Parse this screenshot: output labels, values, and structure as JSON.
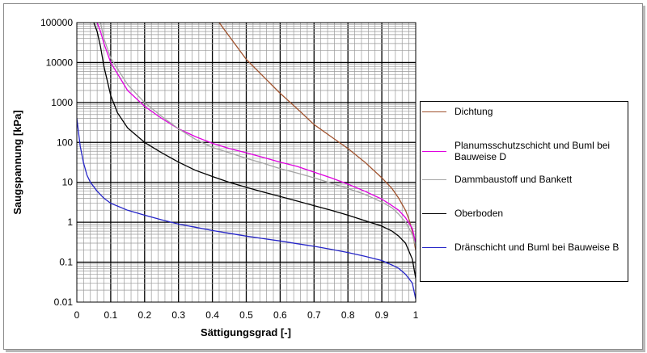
{
  "chart_data": {
    "type": "line",
    "title": "",
    "xlabel": "Sättigungsgrad [-]",
    "ylabel": "Saugspannung [kPa]",
    "xlim": [
      0,
      1
    ],
    "ylim": [
      0.01,
      100000
    ],
    "yscale": "log",
    "grid": true,
    "legend_position": "right",
    "x_ticks": [
      "0",
      "0.1",
      "0.2",
      "0.3",
      "0.4",
      "0.5",
      "0.6",
      "0.7",
      "0.8",
      "0.9",
      "1"
    ],
    "y_ticks": [
      "0.01",
      "0.1",
      "1",
      "10",
      "100",
      "1000",
      "10000",
      "100000"
    ],
    "series": [
      {
        "name": "Dichtung",
        "color": "#a0522d",
        "points": [
          [
            0.42,
            100000
          ],
          [
            0.45,
            45000
          ],
          [
            0.5,
            12000
          ],
          [
            0.55,
            4500
          ],
          [
            0.6,
            1700
          ],
          [
            0.65,
            700
          ],
          [
            0.7,
            280
          ],
          [
            0.75,
            140
          ],
          [
            0.8,
            70
          ],
          [
            0.85,
            32
          ],
          [
            0.9,
            13
          ],
          [
            0.93,
            7
          ],
          [
            0.95,
            4
          ],
          [
            0.97,
            2
          ],
          [
            0.98,
            1.2
          ],
          [
            0.99,
            0.6
          ],
          [
            1.0,
            0.2
          ]
        ]
      },
      {
        "name": "Planumsschutzschicht und Buml bei Bauweise D",
        "color": "#e000e0",
        "points": [
          [
            0.06,
            100000
          ],
          [
            0.07,
            60000
          ],
          [
            0.08,
            30000
          ],
          [
            0.1,
            10000
          ],
          [
            0.15,
            2000
          ],
          [
            0.2,
            800
          ],
          [
            0.25,
            400
          ],
          [
            0.3,
            220
          ],
          [
            0.35,
            140
          ],
          [
            0.4,
            95
          ],
          [
            0.45,
            70
          ],
          [
            0.5,
            55
          ],
          [
            0.55,
            42
          ],
          [
            0.6,
            32
          ],
          [
            0.65,
            25
          ],
          [
            0.7,
            18
          ],
          [
            0.75,
            13
          ],
          [
            0.8,
            9
          ],
          [
            0.85,
            6
          ],
          [
            0.9,
            3.8
          ],
          [
            0.93,
            2.6
          ],
          [
            0.95,
            2
          ],
          [
            0.97,
            1.3
          ],
          [
            0.99,
            0.7
          ],
          [
            1.0,
            0.3
          ]
        ]
      },
      {
        "name": "Dammbaustoff und Bankett",
        "color": "#a6a6a6",
        "points": [
          [
            0.07,
            100000
          ],
          [
            0.08,
            40000
          ],
          [
            0.1,
            13000
          ],
          [
            0.15,
            2800
          ],
          [
            0.2,
            1000
          ],
          [
            0.25,
            450
          ],
          [
            0.3,
            220
          ],
          [
            0.35,
            120
          ],
          [
            0.4,
            75
          ],
          [
            0.45,
            55
          ],
          [
            0.5,
            40
          ],
          [
            0.55,
            30
          ],
          [
            0.6,
            22
          ],
          [
            0.65,
            17
          ],
          [
            0.7,
            13
          ],
          [
            0.75,
            9.5
          ],
          [
            0.8,
            7
          ],
          [
            0.85,
            5
          ],
          [
            0.9,
            3.2
          ],
          [
            0.93,
            2.3
          ],
          [
            0.95,
            1.6
          ],
          [
            0.97,
            1
          ],
          [
            0.99,
            0.5
          ],
          [
            1.0,
            0.25
          ]
        ]
      },
      {
        "name": "Oberboden",
        "color": "#000000",
        "points": [
          [
            0.05,
            100000
          ],
          [
            0.06,
            60000
          ],
          [
            0.07,
            25000
          ],
          [
            0.08,
            8000
          ],
          [
            0.1,
            1500
          ],
          [
            0.12,
            550
          ],
          [
            0.15,
            230
          ],
          [
            0.2,
            100
          ],
          [
            0.25,
            55
          ],
          [
            0.3,
            32
          ],
          [
            0.35,
            20
          ],
          [
            0.4,
            14
          ],
          [
            0.45,
            10
          ],
          [
            0.5,
            7.5
          ],
          [
            0.55,
            5.7
          ],
          [
            0.6,
            4.4
          ],
          [
            0.65,
            3.4
          ],
          [
            0.7,
            2.6
          ],
          [
            0.75,
            2
          ],
          [
            0.8,
            1.5
          ],
          [
            0.85,
            1.1
          ],
          [
            0.9,
            0.8
          ],
          [
            0.93,
            0.6
          ],
          [
            0.95,
            0.45
          ],
          [
            0.97,
            0.3
          ],
          [
            0.99,
            0.12
          ],
          [
            1.0,
            0.04
          ]
        ]
      },
      {
        "name": "Dränschicht und Buml bei Bauweise B",
        "color": "#2626c8",
        "points": [
          [
            0.0,
            400
          ],
          [
            0.01,
            80
          ],
          [
            0.02,
            30
          ],
          [
            0.03,
            15
          ],
          [
            0.04,
            10
          ],
          [
            0.06,
            6
          ],
          [
            0.08,
            4
          ],
          [
            0.1,
            3
          ],
          [
            0.15,
            2
          ],
          [
            0.2,
            1.5
          ],
          [
            0.25,
            1.15
          ],
          [
            0.3,
            0.9
          ],
          [
            0.35,
            0.75
          ],
          [
            0.4,
            0.62
          ],
          [
            0.45,
            0.53
          ],
          [
            0.5,
            0.45
          ],
          [
            0.55,
            0.39
          ],
          [
            0.6,
            0.34
          ],
          [
            0.65,
            0.29
          ],
          [
            0.7,
            0.25
          ],
          [
            0.75,
            0.21
          ],
          [
            0.8,
            0.175
          ],
          [
            0.85,
            0.14
          ],
          [
            0.9,
            0.11
          ],
          [
            0.93,
            0.085
          ],
          [
            0.95,
            0.07
          ],
          [
            0.97,
            0.05
          ],
          [
            0.99,
            0.03
          ],
          [
            1.0,
            0.012
          ]
        ]
      }
    ]
  }
}
